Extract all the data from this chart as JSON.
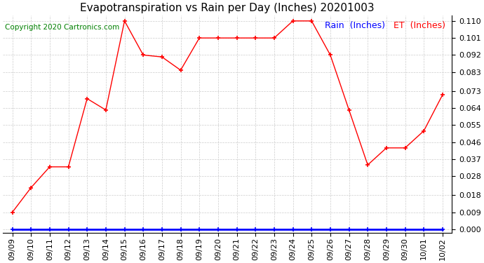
{
  "title": "Evapotranspiration vs Rain per Day (Inches) 20201003",
  "copyright_text": "Copyright 2020 Cartronics.com",
  "legend_rain_label": "Rain  (Inches)",
  "legend_et_label": "ET  (Inches)",
  "x_labels": [
    "09/09",
    "09/10",
    "09/11",
    "09/12",
    "09/13",
    "09/14",
    "09/15",
    "09/16",
    "09/17",
    "09/18",
    "09/19",
    "09/20",
    "09/21",
    "09/22",
    "09/23",
    "09/24",
    "09/25",
    "09/26",
    "09/27",
    "09/28",
    "09/29",
    "09/30",
    "10/01",
    "10/02"
  ],
  "et_values": [
    0.009,
    0.022,
    0.033,
    0.033,
    0.069,
    0.063,
    0.11,
    0.092,
    0.091,
    0.084,
    0.101,
    0.101,
    0.101,
    0.101,
    0.101,
    0.11,
    0.11,
    0.092,
    0.063,
    0.034,
    0.043,
    0.043,
    0.052,
    0.071
  ],
  "rain_values": [
    0.0,
    0.0,
    0.0,
    0.0,
    0.0,
    0.0,
    0.0,
    0.0,
    0.0,
    0.0,
    0.0,
    0.0,
    0.0,
    0.0,
    0.0,
    0.0,
    0.0,
    0.0,
    0.0,
    0.0,
    0.0,
    0.0,
    0.0,
    0.0
  ],
  "et_color": "red",
  "rain_color": "blue",
  "ylim_min": -0.002,
  "ylim_max": 0.113,
  "yticks": [
    0.0,
    0.009,
    0.018,
    0.028,
    0.037,
    0.046,
    0.055,
    0.064,
    0.073,
    0.083,
    0.092,
    0.101,
    0.11
  ],
  "grid_color": "#cccccc",
  "background_color": "#ffffff",
  "title_fontsize": 11,
  "copyright_fontsize": 7.5,
  "legend_fontsize": 9,
  "tick_fontsize": 8
}
